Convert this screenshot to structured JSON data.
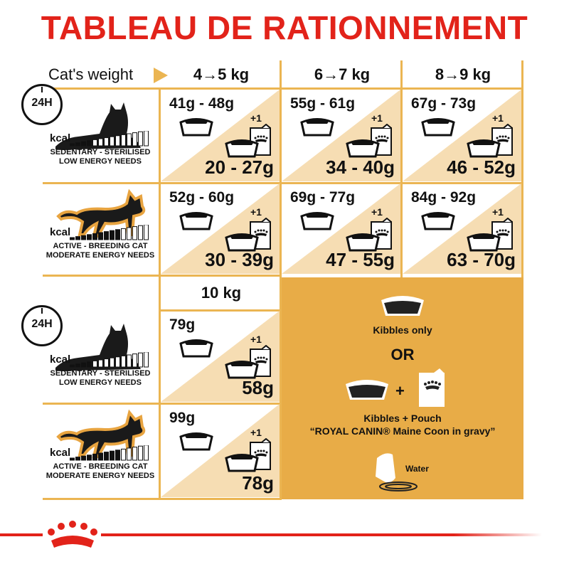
{
  "title": "TABLEAU DE RATIONNEMENT",
  "header": {
    "cats_weight_label": "Cat's weight",
    "weights": [
      "4→5 kg",
      "6→7 kg",
      "8→9 kg"
    ],
    "weight_10": "10 kg"
  },
  "profiles": [
    {
      "clock": "24H",
      "kcal": "kcal",
      "line1": "SEDENTARY - STERILISED",
      "line2": "LOW ENERGY NEEDS",
      "filled_bars": 4
    },
    {
      "kcal": "kcal",
      "line1": "ACTIVE - BREEDING CAT",
      "line2": "MODERATE ENERGY NEEDS",
      "filled_bars": 9
    },
    {
      "clock": "24H",
      "kcal": "kcal",
      "line1": "SEDENTARY - STERILISED",
      "line2": "LOW ENERGY NEEDS",
      "filled_bars": 4
    },
    {
      "kcal": "kcal",
      "line1": "ACTIVE - BREEDING CAT",
      "line2": "MODERATE ENERGY NEEDS",
      "filled_bars": 9
    }
  ],
  "cells": [
    [
      {
        "kibbles": "41g - 48g",
        "plus": "+1",
        "mixed": "20 - 27g"
      },
      {
        "kibbles": "55g - 61g",
        "plus": "+1",
        "mixed": "34 - 40g"
      },
      {
        "kibbles": "67g - 73g",
        "plus": "+1",
        "mixed": "46 - 52g"
      }
    ],
    [
      {
        "kibbles": "52g - 60g",
        "plus": "+1",
        "mixed": "30 - 39g"
      },
      {
        "kibbles": "69g - 77g",
        "plus": "+1",
        "mixed": "47 - 55g"
      },
      {
        "kibbles": "84g - 92g",
        "plus": "+1",
        "mixed": "63 - 70g"
      }
    ],
    [
      {
        "kibbles": "79g",
        "plus": "+1",
        "mixed": "58g"
      }
    ],
    [
      {
        "kibbles": "99g",
        "plus": "+1",
        "mixed": "78g"
      }
    ]
  ],
  "legend": {
    "kibbles_only": "Kibbles only",
    "or": "OR",
    "plus": "+",
    "kibbles_pouch": "Kibbles + Pouch",
    "pouch_name": "“ROYAL CANIN® Maine Coon in gravy”",
    "water": "Water"
  },
  "colors": {
    "title": "#e2231a",
    "border": "#ebb552",
    "triangle": "#f6ddb3",
    "panel": "#e8ac47"
  }
}
